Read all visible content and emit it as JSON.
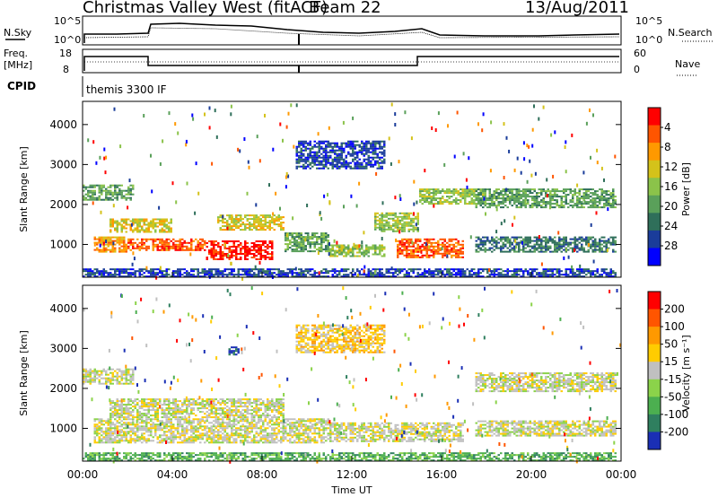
{
  "header": {
    "station": "Christmas Valley West (fitACF)",
    "beam": "Beam 22",
    "date": "13/Aug/2011"
  },
  "top_panels": {
    "nsky": {
      "label": "N.Sky",
      "ticks": [
        "10^5",
        "10^0"
      ]
    },
    "nsearch": {
      "label": "N.Search",
      "ticks": [
        "10^5",
        "10^0"
      ]
    },
    "freq": {
      "label_line1": "Freq.",
      "label_line2": "[MHz]",
      "ticks": [
        "18",
        "8"
      ]
    },
    "nave": {
      "label": "Nave",
      "ticks": [
        "60",
        "0"
      ]
    },
    "cpid": {
      "label": "CPID",
      "value": "themis 3300 IF"
    }
  },
  "colors": {
    "power_scale": [
      "#0000ff",
      "#1a3c9a",
      "#2f6f5a",
      "#5aa05a",
      "#8bc34a",
      "#d4c21a",
      "#ff9900",
      "#ff5500",
      "#ff0000"
    ],
    "velocity_scale": [
      "#1a2fb5",
      "#2f7f5f",
      "#4caf50",
      "#8bd34a",
      "#c0c0c0",
      "#ffcc00",
      "#ff9900",
      "#ff5500",
      "#ff0000"
    ]
  },
  "chart_data": [
    {
      "type": "heatmap",
      "name": "power",
      "xlabel": "",
      "ylabel": "Slant Range [km]",
      "xlim": [
        0,
        24
      ],
      "ylim": [
        180,
        4580
      ],
      "yticks": [
        "1000",
        "2000",
        "3000",
        "4000"
      ],
      "colorbar_label": "Power [dB]",
      "colorbar_ticks": [
        "4",
        "8",
        "12",
        "16",
        "20",
        "24",
        "28"
      ],
      "regions": [
        {
          "x": [
            0.0,
            2.3
          ],
          "y": [
            2100,
            2500
          ],
          "level": 3
        },
        {
          "x": [
            1.2,
            4.0
          ],
          "y": [
            1300,
            1650
          ],
          "level": 5
        },
        {
          "x": [
            0.5,
            2.0
          ],
          "y": [
            800,
            1200
          ],
          "level": 6
        },
        {
          "x": [
            2.0,
            5.5
          ],
          "y": [
            850,
            1150
          ],
          "level": 7
        },
        {
          "x": [
            5.5,
            8.5
          ],
          "y": [
            650,
            1100
          ],
          "level": 8
        },
        {
          "x": [
            6.0,
            9.0
          ],
          "y": [
            1350,
            1750
          ],
          "level": 5
        },
        {
          "x": [
            9.0,
            11.0
          ],
          "y": [
            850,
            1300
          ],
          "level": 3
        },
        {
          "x": [
            11.0,
            13.5
          ],
          "y": [
            700,
            1000
          ],
          "level": 4
        },
        {
          "x": [
            14.0,
            17.0
          ],
          "y": [
            700,
            1150
          ],
          "level": 7
        },
        {
          "x": [
            13.0,
            15.0
          ],
          "y": [
            1350,
            1800
          ],
          "level": 4
        },
        {
          "x": [
            15.0,
            18.0
          ],
          "y": [
            2000,
            2400
          ],
          "level": 4
        },
        {
          "x": [
            17.5,
            23.8
          ],
          "y": [
            1950,
            2400
          ],
          "level": 3
        },
        {
          "x": [
            17.5,
            23.8
          ],
          "y": [
            800,
            1200
          ],
          "level": 2
        },
        {
          "x": [
            0.0,
            23.8
          ],
          "y": [
            200,
            400
          ],
          "level": 1
        },
        {
          "x": [
            9.5,
            13.5
          ],
          "y": [
            2900,
            3600
          ],
          "level": 1
        }
      ]
    },
    {
      "type": "heatmap",
      "name": "velocity",
      "xlabel": "Time UT",
      "ylabel": "Slant Range [km]",
      "xlim": [
        0,
        24
      ],
      "ylim": [
        180,
        4580
      ],
      "xticks": [
        "00:00",
        "04:00",
        "08:00",
        "12:00",
        "16:00",
        "20:00",
        "00:00"
      ],
      "yticks": [
        "1000",
        "2000",
        "3000",
        "4000"
      ],
      "colorbar_label": "Velocity [m s⁻¹]",
      "colorbar_ticks": [
        "200",
        "100",
        "50",
        "15",
        "-15",
        "-50",
        "-100",
        "-200"
      ],
      "regions": [
        {
          "x": [
            0.0,
            2.3
          ],
          "y": [
            2100,
            2500
          ],
          "level": 4
        },
        {
          "x": [
            1.2,
            9.0
          ],
          "y": [
            1300,
            1750
          ],
          "level": 4
        },
        {
          "x": [
            0.5,
            11.0
          ],
          "y": [
            650,
            1250
          ],
          "level": 4
        },
        {
          "x": [
            11.0,
            17.0
          ],
          "y": [
            700,
            1150
          ],
          "level": 4
        },
        {
          "x": [
            17.5,
            23.8
          ],
          "y": [
            1950,
            2400
          ],
          "level": 4
        },
        {
          "x": [
            17.5,
            23.8
          ],
          "y": [
            800,
            1200
          ],
          "level": 4
        },
        {
          "x": [
            6.5,
            7.0
          ],
          "y": [
            2850,
            3050
          ],
          "level": 0
        },
        {
          "x": [
            0.0,
            23.8
          ],
          "y": [
            200,
            400
          ],
          "level": 2
        },
        {
          "x": [
            9.5,
            13.5
          ],
          "y": [
            2900,
            3600
          ],
          "level": 5
        }
      ]
    }
  ]
}
